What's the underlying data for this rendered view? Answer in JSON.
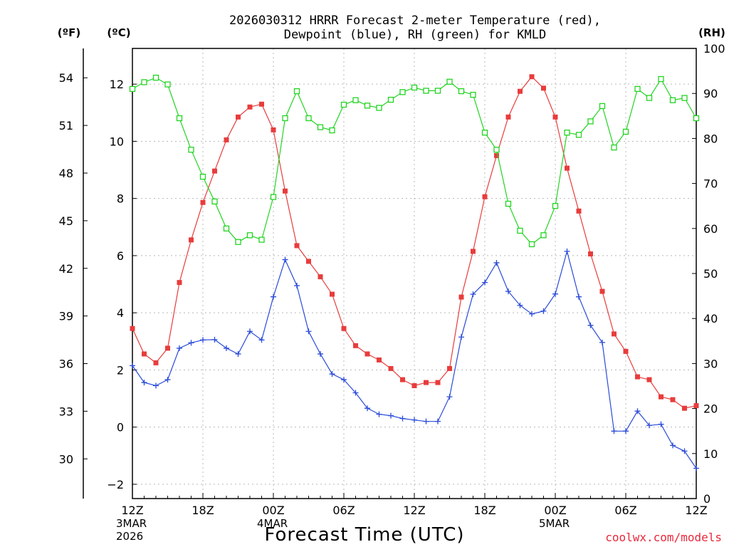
{
  "chart_data": {
    "type": "line",
    "title_line1": "2026030312 HRRR Forecast 2-meter Temperature (red),",
    "title_line2": "Dewpoint (blue), RH (green) for KMLD",
    "xlabel": "Forecast Time (UTC)",
    "credit": "coolwx.com/models",
    "axis_units": {
      "fahrenheit": "(ºF)",
      "celsius": "(ºC)",
      "rh": "(RH)"
    },
    "xlim": [
      0,
      48
    ],
    "ylim_c": [
      -2.5,
      13.25
    ],
    "ylim_rh": [
      0,
      100
    ],
    "x_ticks": [
      {
        "x": 0,
        "label": "12Z",
        "sub1": "3MAR",
        "sub2": "2026"
      },
      {
        "x": 6,
        "label": "18Z",
        "sub1": "",
        "sub2": ""
      },
      {
        "x": 12,
        "label": "00Z",
        "sub1": "4MAR",
        "sub2": ""
      },
      {
        "x": 18,
        "label": "06Z",
        "sub1": "",
        "sub2": ""
      },
      {
        "x": 24,
        "label": "12Z",
        "sub1": "",
        "sub2": ""
      },
      {
        "x": 30,
        "label": "18Z",
        "sub1": "",
        "sub2": ""
      },
      {
        "x": 36,
        "label": "00Z",
        "sub1": "5MAR",
        "sub2": ""
      },
      {
        "x": 42,
        "label": "06Z",
        "sub1": "",
        "sub2": ""
      },
      {
        "x": 48,
        "label": "12Z",
        "sub1": "",
        "sub2": ""
      }
    ],
    "c_ticks": [
      -2,
      0,
      2,
      4,
      6,
      8,
      10,
      12
    ],
    "f_ticks": [
      30,
      33,
      36,
      39,
      42,
      45,
      48,
      51,
      54
    ],
    "rh_ticks": [
      0,
      10,
      20,
      30,
      40,
      50,
      60,
      70,
      80,
      90,
      100
    ],
    "series": [
      {
        "name": "Temperature",
        "color": "#e83c3c",
        "marker": "filled-square",
        "axis": "celsius",
        "values": [
          3.45,
          2.56,
          2.25,
          2.76,
          5.06,
          6.55,
          7.86,
          8.96,
          10.05,
          10.85,
          11.2,
          11.3,
          10.4,
          8.26,
          6.35,
          5.8,
          5.26,
          4.65,
          3.45,
          2.85,
          2.56,
          2.35,
          2.05,
          1.66,
          1.45,
          1.56,
          1.56,
          2.05,
          4.55,
          6.15,
          8.06,
          9.5,
          10.85,
          11.75,
          12.26,
          11.86,
          10.85,
          9.06,
          7.56,
          6.06,
          4.75,
          3.26,
          2.65,
          1.76,
          1.66,
          1.06,
          0.96,
          0.66,
          0.75
        ]
      },
      {
        "name": "Dewpoint",
        "color": "#2a4bd8",
        "marker": "plus",
        "axis": "celsius",
        "values": [
          2.15,
          1.56,
          1.45,
          1.66,
          2.76,
          2.95,
          3.05,
          3.06,
          2.76,
          2.56,
          3.35,
          3.05,
          4.56,
          5.86,
          4.95,
          3.35,
          2.56,
          1.86,
          1.66,
          1.2,
          0.66,
          0.45,
          0.4,
          0.3,
          0.25,
          0.2,
          0.2,
          1.06,
          3.15,
          4.65,
          5.06,
          5.75,
          4.75,
          4.26,
          3.96,
          4.06,
          4.66,
          6.15,
          4.56,
          3.56,
          2.96,
          -0.14,
          -0.14,
          0.56,
          0.06,
          0.1,
          -0.64,
          -0.84,
          -1.44
        ]
      },
      {
        "name": "RH",
        "color": "#22d422",
        "marker": "open-square",
        "axis": "rh",
        "values": [
          91,
          92.5,
          93.5,
          92,
          84.5,
          77.5,
          71.5,
          66,
          60,
          57,
          58.5,
          57.5,
          67,
          84.5,
          90.5,
          84.5,
          82.5,
          81.8,
          87.5,
          88.5,
          87.3,
          86.8,
          88.6,
          90.3,
          91.3,
          90.6,
          90.6,
          92.6,
          90.5,
          89.7,
          81.3,
          77.5,
          65.5,
          59.5,
          56.5,
          58.5,
          65,
          81.3,
          80.8,
          83.8,
          87.2,
          78,
          81.5,
          91,
          89,
          93.2,
          88.5,
          89,
          84.5
        ]
      }
    ]
  }
}
